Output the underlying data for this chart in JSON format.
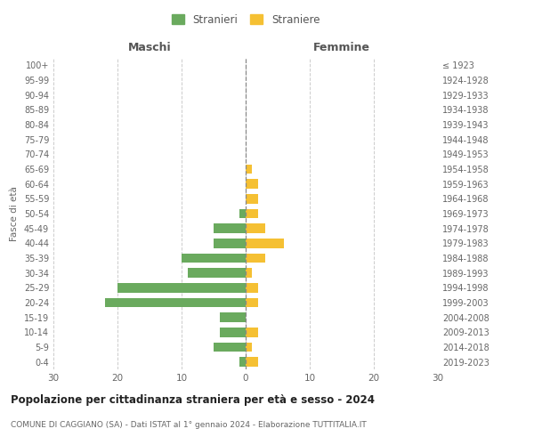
{
  "age_groups": [
    "0-4",
    "5-9",
    "10-14",
    "15-19",
    "20-24",
    "25-29",
    "30-34",
    "35-39",
    "40-44",
    "45-49",
    "50-54",
    "55-59",
    "60-64",
    "65-69",
    "70-74",
    "75-79",
    "80-84",
    "85-89",
    "90-94",
    "95-99",
    "100+"
  ],
  "birth_years": [
    "2019-2023",
    "2014-2018",
    "2009-2013",
    "2004-2008",
    "1999-2003",
    "1994-1998",
    "1989-1993",
    "1984-1988",
    "1979-1983",
    "1974-1978",
    "1969-1973",
    "1964-1968",
    "1959-1963",
    "1954-1958",
    "1949-1953",
    "1944-1948",
    "1939-1943",
    "1934-1938",
    "1929-1933",
    "1924-1928",
    "≤ 1923"
  ],
  "males": [
    1,
    5,
    4,
    4,
    22,
    20,
    9,
    10,
    5,
    5,
    1,
    0,
    0,
    0,
    0,
    0,
    0,
    0,
    0,
    0,
    0
  ],
  "females": [
    2,
    1,
    2,
    0,
    2,
    2,
    1,
    3,
    6,
    3,
    2,
    2,
    2,
    1,
    0,
    0,
    0,
    0,
    0,
    0,
    0
  ],
  "male_color": "#6aaa5e",
  "female_color": "#f5c033",
  "title": "Popolazione per cittadinanza straniera per età e sesso - 2024",
  "subtitle": "COMUNE DI CAGGIANO (SA) - Dati ISTAT al 1° gennaio 2024 - Elaborazione TUTTITALIA.IT",
  "legend_male": "Stranieri",
  "legend_female": "Straniere",
  "xlabel_left": "Maschi",
  "xlabel_right": "Femmine",
  "ylabel_left": "Fasce di età",
  "xlim": 30,
  "background_color": "#ffffff",
  "grid_color": "#cccccc"
}
